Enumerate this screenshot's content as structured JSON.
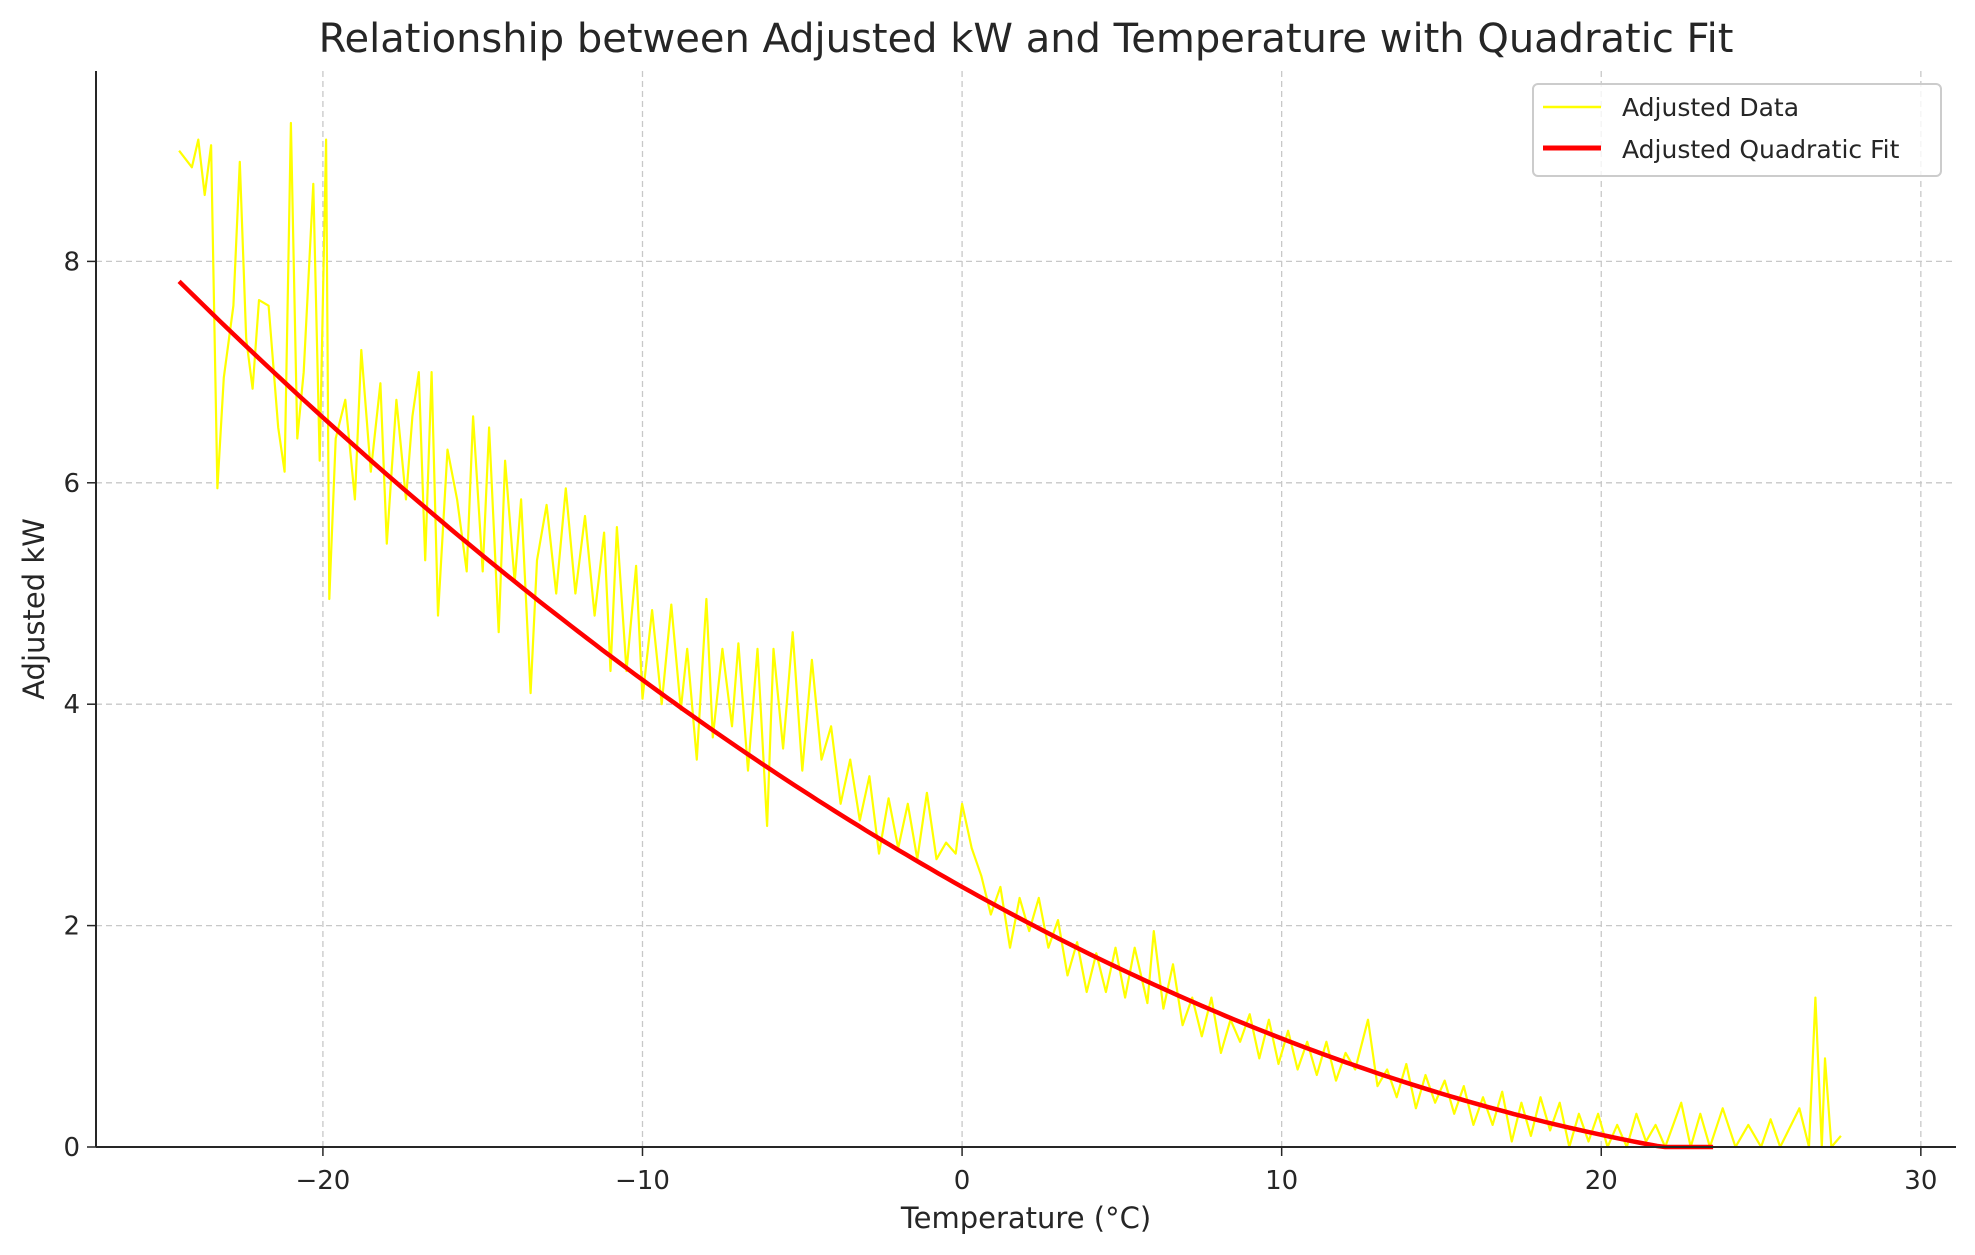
{
  "chart_data": {
    "type": "line",
    "title": "Relationship between Adjusted kW and Temperature with Quadratic Fit",
    "xlabel": "Temperature (°C)",
    "ylabel": "Adjusted kW",
    "xlim": [
      -27.1,
      31.1
    ],
    "ylim": [
      0,
      9.72
    ],
    "xticks": [
      -20,
      -10,
      0,
      10,
      20,
      30
    ],
    "xtick_labels": [
      "−20",
      "−10",
      "0",
      "10",
      "20",
      "30"
    ],
    "yticks": [
      0,
      2,
      4,
      6,
      8
    ],
    "ytick_labels": [
      "0",
      "2",
      "4",
      "6",
      "8"
    ],
    "grid": true,
    "legend_position": "top-right",
    "series": [
      {
        "name": "Adjusted Data",
        "color": "#ffff00",
        "x": [
          -24.5,
          -24.1,
          -23.9,
          -23.7,
          -23.5,
          -23.3,
          -23.1,
          -22.8,
          -22.6,
          -22.4,
          -22.2,
          -22.0,
          -21.7,
          -21.4,
          -21.2,
          -21.0,
          -20.8,
          -20.6,
          -20.3,
          -20.1,
          -19.9,
          -19.8,
          -19.6,
          -19.3,
          -19.0,
          -18.8,
          -18.5,
          -18.2,
          -18.0,
          -17.7,
          -17.4,
          -17.2,
          -17.0,
          -16.8,
          -16.6,
          -16.4,
          -16.1,
          -15.8,
          -15.5,
          -15.3,
          -15.0,
          -14.8,
          -14.5,
          -14.3,
          -14.0,
          -13.8,
          -13.5,
          -13.3,
          -13.0,
          -12.7,
          -12.4,
          -12.1,
          -11.8,
          -11.5,
          -11.2,
          -11.0,
          -10.8,
          -10.5,
          -10.2,
          -10.0,
          -9.7,
          -9.4,
          -9.1,
          -8.8,
          -8.6,
          -8.3,
          -8.0,
          -7.8,
          -7.5,
          -7.2,
          -7.0,
          -6.7,
          -6.4,
          -6.1,
          -5.9,
          -5.6,
          -5.3,
          -5.0,
          -4.7,
          -4.4,
          -4.1,
          -3.8,
          -3.5,
          -3.2,
          -2.9,
          -2.6,
          -2.3,
          -2.0,
          -1.7,
          -1.4,
          -1.1,
          -0.8,
          -0.5,
          -0.2,
          0.0,
          0.3,
          0.6,
          0.9,
          1.2,
          1.5,
          1.8,
          2.1,
          2.4,
          2.7,
          3.0,
          3.3,
          3.6,
          3.9,
          4.2,
          4.5,
          4.8,
          5.1,
          5.4,
          5.8,
          6.0,
          6.3,
          6.6,
          6.9,
          7.2,
          7.5,
          7.8,
          8.1,
          8.4,
          8.7,
          9.0,
          9.3,
          9.6,
          9.9,
          10.2,
          10.5,
          10.8,
          11.1,
          11.4,
          11.7,
          12.0,
          12.3,
          12.7,
          13.0,
          13.3,
          13.6,
          13.9,
          14.2,
          14.5,
          14.8,
          15.1,
          15.4,
          15.7,
          16.0,
          16.3,
          16.6,
          16.9,
          17.2,
          17.5,
          17.8,
          18.1,
          18.4,
          18.7,
          19.0,
          19.3,
          19.6,
          19.9,
          20.2,
          20.5,
          20.8,
          21.1,
          21.4,
          21.7,
          22.0,
          22.5,
          22.8,
          23.1,
          23.4,
          23.8,
          24.2,
          24.6,
          25.0,
          25.3,
          25.6,
          26.2,
          26.5,
          26.7,
          26.9,
          27.0,
          27.2,
          27.5
        ],
        "y": [
          9.0,
          8.85,
          9.1,
          8.6,
          9.05,
          5.95,
          6.95,
          7.6,
          8.9,
          7.3,
          6.85,
          7.65,
          7.6,
          6.5,
          6.1,
          9.25,
          6.4,
          7.0,
          8.7,
          6.2,
          9.1,
          4.95,
          6.4,
          6.75,
          5.85,
          7.2,
          6.1,
          6.9,
          5.45,
          6.75,
          5.85,
          6.6,
          7.0,
          5.3,
          7.0,
          4.8,
          6.3,
          5.85,
          5.2,
          6.6,
          5.2,
          6.5,
          4.65,
          6.2,
          5.1,
          5.85,
          4.1,
          5.3,
          5.8,
          5.0,
          5.95,
          5.0,
          5.7,
          4.8,
          5.55,
          4.3,
          5.6,
          4.3,
          5.25,
          4.05,
          4.85,
          4.0,
          4.9,
          3.95,
          4.5,
          3.5,
          4.95,
          3.7,
          4.5,
          3.8,
          4.55,
          3.4,
          4.5,
          2.9,
          4.5,
          3.6,
          4.65,
          3.4,
          4.4,
          3.5,
          3.8,
          3.1,
          3.5,
          2.95,
          3.35,
          2.65,
          3.15,
          2.7,
          3.1,
          2.6,
          3.2,
          2.6,
          2.75,
          2.65,
          3.1,
          2.7,
          2.45,
          2.1,
          2.35,
          1.8,
          2.25,
          1.95,
          2.25,
          1.8,
          2.05,
          1.55,
          1.85,
          1.4,
          1.75,
          1.4,
          1.8,
          1.35,
          1.8,
          1.3,
          1.95,
          1.25,
          1.65,
          1.1,
          1.35,
          1.0,
          1.35,
          0.85,
          1.15,
          0.95,
          1.2,
          0.8,
          1.15,
          0.75,
          1.05,
          0.7,
          0.95,
          0.65,
          0.95,
          0.6,
          0.85,
          0.7,
          1.15,
          0.55,
          0.7,
          0.45,
          0.75,
          0.35,
          0.65,
          0.4,
          0.6,
          0.3,
          0.55,
          0.2,
          0.45,
          0.2,
          0.5,
          0.05,
          0.4,
          0.1,
          0.45,
          0.15,
          0.4,
          0.0,
          0.3,
          0.05,
          0.3,
          0.0,
          0.2,
          0.0,
          0.3,
          0.05,
          0.2,
          0.0,
          0.4,
          0.0,
          0.3,
          0.0,
          0.35,
          0.0,
          0.2,
          0.0,
          0.25,
          0.0,
          0.35,
          0.0,
          1.35,
          0.0,
          0.8,
          0.0,
          0.1
        ]
      },
      {
        "name": "Adjusted Quadratic Fit",
        "color": "#ff0000",
        "coefficients": [
          0.0025,
          -0.162,
          2.35
        ],
        "x_range": [
          -24.5,
          23.5
        ]
      }
    ]
  }
}
